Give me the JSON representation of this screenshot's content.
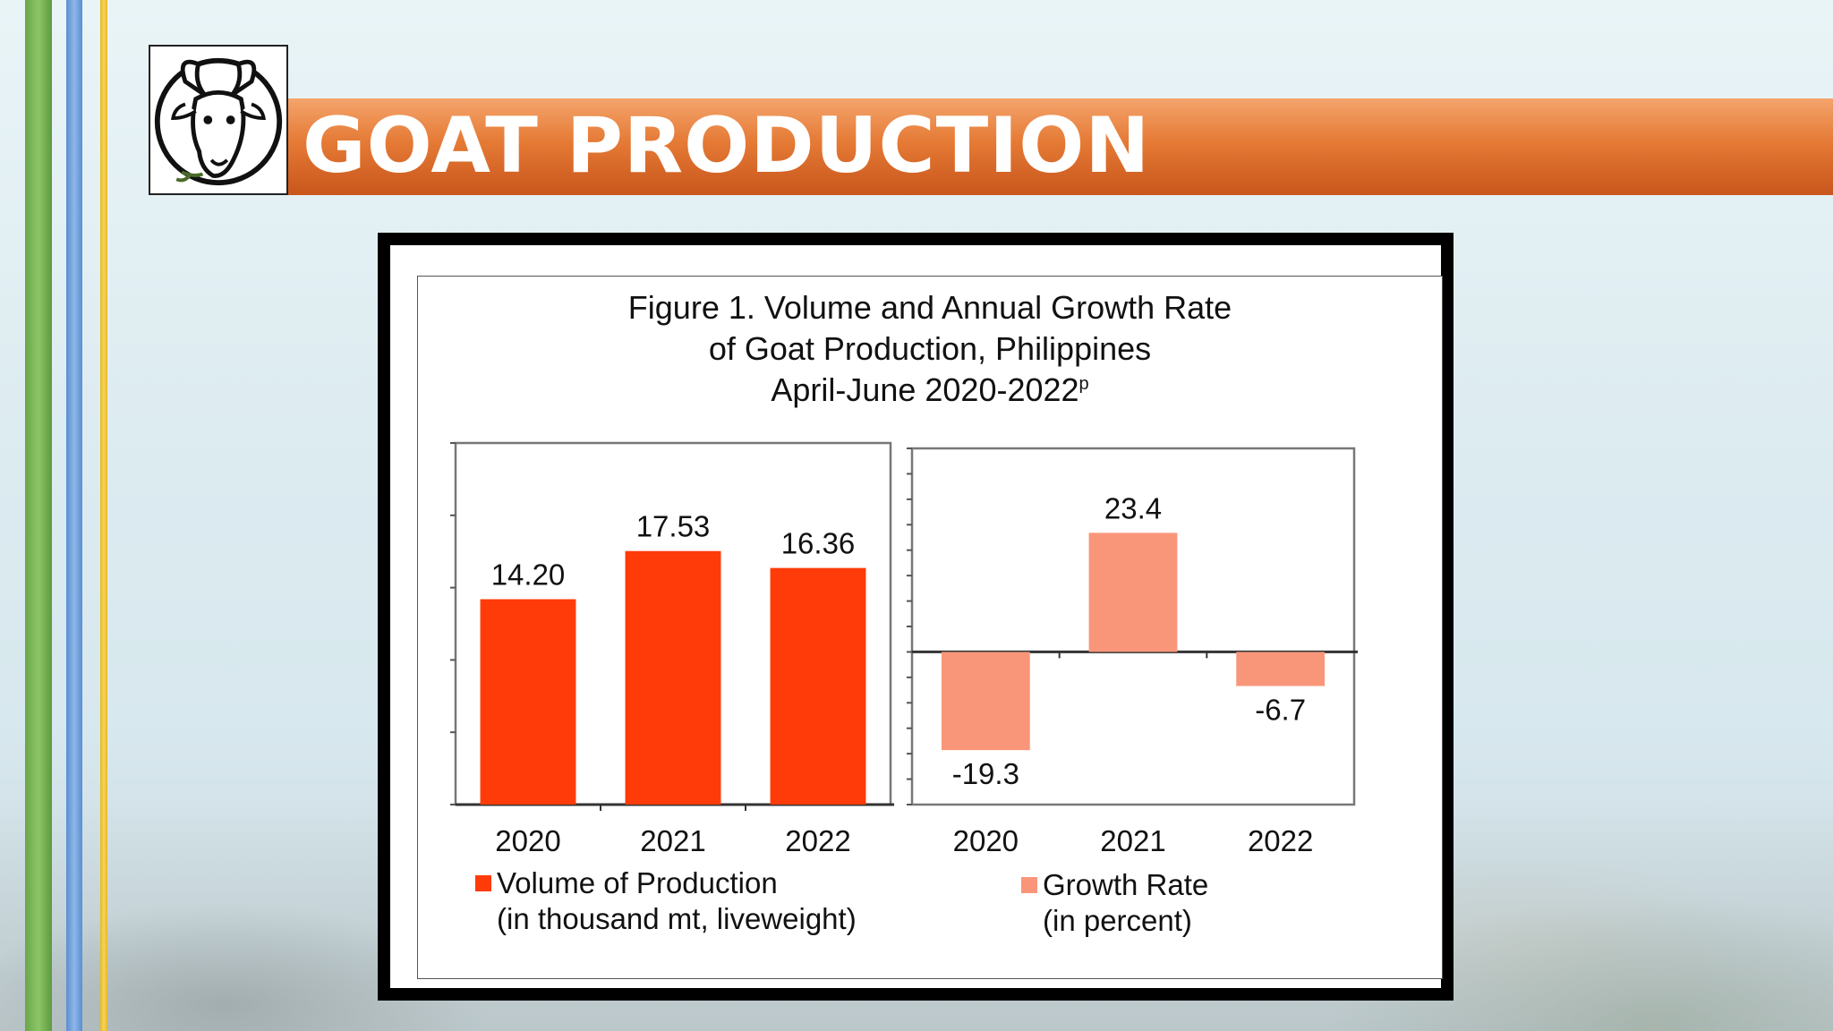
{
  "slide": {
    "title": "GOAT PRODUCTION",
    "logo_icon": "goat-head-icon"
  },
  "colors": {
    "title_bar": "#e57a35",
    "stripe_green": "#6aa64a",
    "stripe_blue": "#5a8fd0",
    "stripe_yellow": "#e6b824",
    "volume_bar": "#ff3b0a",
    "growth_bar": "#f9967a"
  },
  "chart_data": {
    "title_lines": [
      "Figure 1. Volume and Annual Growth Rate",
      "of Goat Production, Philippines",
      "April-June 2020-2022"
    ],
    "title_superscript": "p",
    "charts": [
      {
        "type": "bar",
        "categories": [
          "2020",
          "2021",
          "2022"
        ],
        "values": [
          14.2,
          17.53,
          16.36
        ],
        "value_labels": [
          "14.20",
          "17.53",
          "16.36"
        ],
        "ylim": [
          0,
          25
        ],
        "legend": [
          "Volume of Production",
          "(in thousand mt, liveweight)"
        ],
        "color": "#ff3b0a"
      },
      {
        "type": "bar",
        "categories": [
          "2020",
          "2021",
          "2022"
        ],
        "values": [
          -19.3,
          23.4,
          -6.7
        ],
        "value_labels": [
          "-19.3",
          "23.4",
          "-6.7"
        ],
        "ylim": [
          -30,
          40
        ],
        "legend": [
          "Growth Rate",
          "(in percent)"
        ],
        "color": "#f9967a"
      }
    ]
  }
}
